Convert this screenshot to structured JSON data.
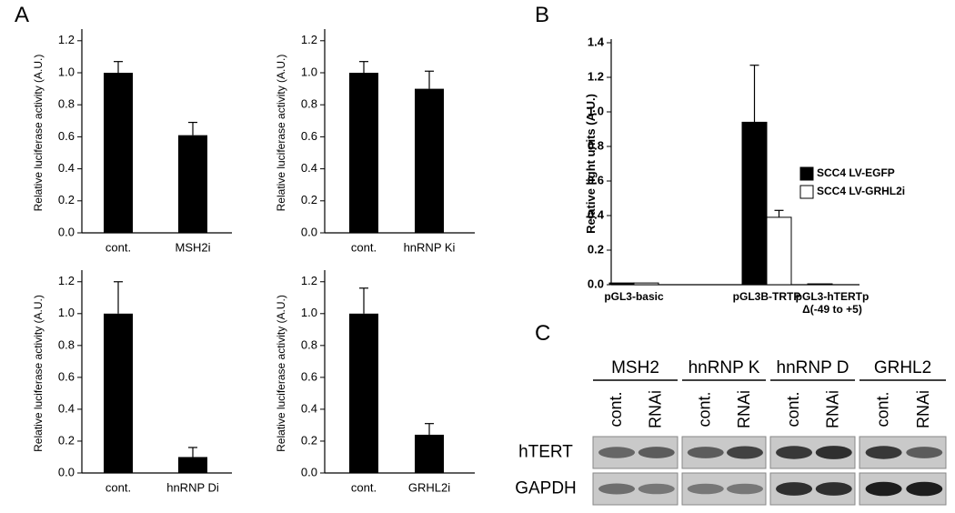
{
  "panel_labels": [
    "A",
    "B",
    "C"
  ],
  "chart_data": [
    {
      "type": "bar",
      "y_label": "Relative luciferase activity (A.U.)",
      "categories": [
        "cont.",
        "MSH2i"
      ],
      "values": [
        1.0,
        0.61
      ],
      "errors": [
        0.07,
        0.08
      ],
      "color": "#000000",
      "ylim": [
        0,
        1.25
      ],
      "yticks": [
        {
          "value": 0,
          "label": "0.0"
        },
        0.2,
        0.4,
        0.6,
        0.8,
        {
          "value": 1,
          "label": "1.0"
        },
        1.2
      ]
    },
    {
      "type": "bar",
      "y_label": "Relative luciferase activity (A.U.)",
      "categories": [
        "cont.",
        "hnRNP Ki"
      ],
      "values": [
        1.0,
        0.9
      ],
      "errors": [
        0.07,
        0.11
      ],
      "color": "#000000",
      "ylim": [
        0,
        1.25
      ],
      "yticks": [
        {
          "value": 0,
          "label": "0.0"
        },
        0.2,
        0.4,
        0.6,
        0.8,
        {
          "value": 1,
          "label": "1.0"
        },
        1.2
      ]
    },
    {
      "type": "bar",
      "y_label": "Relative luciferase activity (A.U.)",
      "categories": [
        "cont.",
        "hnRNP Di"
      ],
      "values": [
        1.0,
        0.1
      ],
      "errors": [
        0.2,
        0.06
      ],
      "color": "#000000",
      "ylim": [
        0,
        1.25
      ],
      "yticks": [
        {
          "value": 0,
          "label": "0.0"
        },
        0.2,
        0.4,
        0.6,
        0.8,
        {
          "value": 1,
          "label": "1.0"
        },
        1.2
      ]
    },
    {
      "type": "bar",
      "y_label": "Relative luciferase activity (A.U.)",
      "categories": [
        "cont.",
        "GRHL2i"
      ],
      "values": [
        1.0,
        0.24
      ],
      "errors": [
        0.16,
        0.07
      ],
      "color": "#000000",
      "ylim": [
        0,
        1.25
      ],
      "yticks": [
        {
          "value": 0,
          "label": "0.0"
        },
        0.2,
        0.4,
        0.6,
        0.8,
        {
          "value": 1,
          "label": "1.0"
        },
        1.2
      ]
    },
    {
      "type": "bar",
      "y_label": "Relative light units (A.U.)",
      "categories": [
        "pGL3-basic",
        "pGL3B-TRTP",
        "pGL3-hTERTp Δ(-49 to +5)"
      ],
      "series": [
        {
          "name": "SCC4 LV-EGFP",
          "color": "#000000",
          "values": [
            0.01,
            0.94,
            0.005
          ],
          "errors": [
            0,
            0.33,
            0
          ]
        },
        {
          "name": "SCC4 LV-GRHL2i",
          "color": "#ffffff",
          "values": [
            0.01,
            0.39,
            0
          ],
          "errors": [
            0,
            0.04,
            0
          ]
        }
      ],
      "ylim": [
        0,
        1.4
      ],
      "yticks": [
        {
          "value": 0,
          "label": "0.0"
        },
        0.2,
        0.4,
        0.6,
        0.8,
        {
          "value": 1,
          "label": "1.0"
        },
        1.2,
        1.4
      ],
      "legend": "right"
    }
  ],
  "gel": {
    "groups": [
      {
        "name": "MSH2",
        "lanes": [
          "cont.",
          "RNAi"
        ]
      },
      {
        "name": "hnRNP K",
        "lanes": [
          "cont.",
          "RNAi"
        ]
      },
      {
        "name": "hnRNP D",
        "lanes": [
          "cont.",
          "RNAi"
        ]
      },
      {
        "name": "GRHL2",
        "lanes": [
          "cont.",
          "RNAi"
        ]
      }
    ],
    "rows": [
      "hTERT",
      "GAPDH"
    ]
  }
}
